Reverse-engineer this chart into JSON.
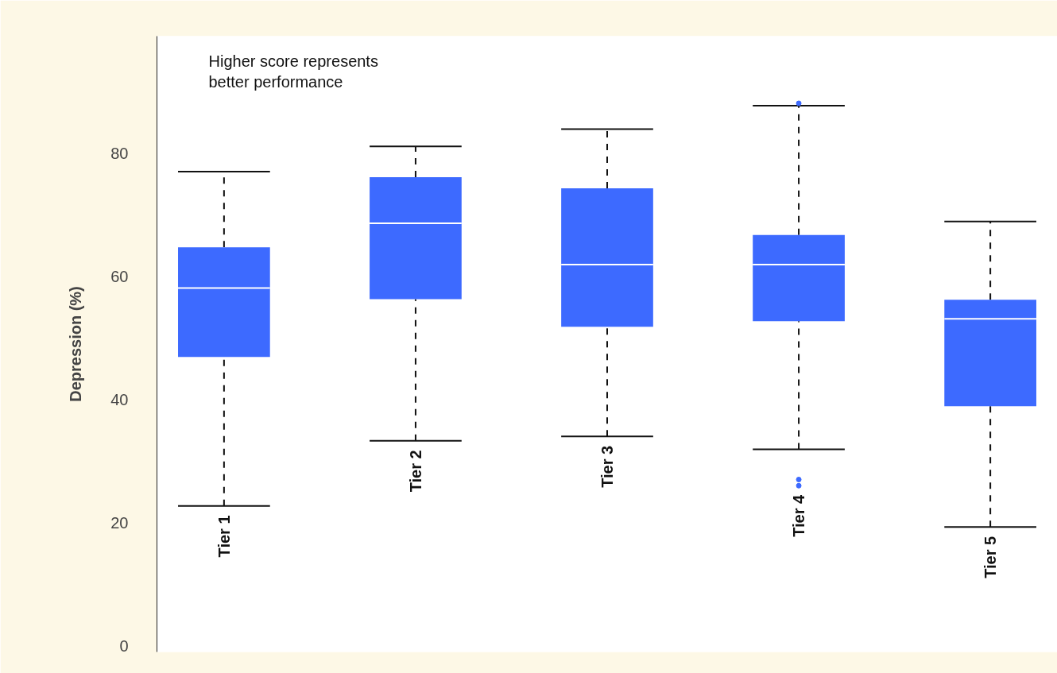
{
  "chart_data": {
    "type": "box",
    "ylabel": "Depression (%)",
    "annotations": [
      "Higher score represents\nbetter performance"
    ],
    "categories": [
      "Tier 1",
      "Tier 2",
      "Tier 3",
      "Tier 4",
      "Tier 5"
    ],
    "color": "#3d6aff",
    "ylim": [
      -1,
      99
    ],
    "yticks": [
      0,
      20,
      40,
      60,
      80
    ],
    "grid": false,
    "boxes": [
      {
        "low": 22.7,
        "q1": 46.9,
        "median": 58.1,
        "q3": 64.7,
        "high": 77.0
      },
      {
        "low": 33.3,
        "q1": 56.3,
        "median": 68.6,
        "q3": 76.1,
        "high": 81.1
      },
      {
        "low": 34.0,
        "q1": 51.8,
        "median": 61.9,
        "q3": 74.3,
        "high": 83.9
      },
      {
        "low": 31.9,
        "q1": 52.7,
        "median": 61.9,
        "q3": 66.7,
        "high": 87.7,
        "outliers": [
          88.1,
          27.0,
          26.0
        ]
      },
      {
        "low": 19.3,
        "q1": 38.9,
        "median": 53.1,
        "q3": 56.2,
        "high": 68.9
      }
    ]
  }
}
